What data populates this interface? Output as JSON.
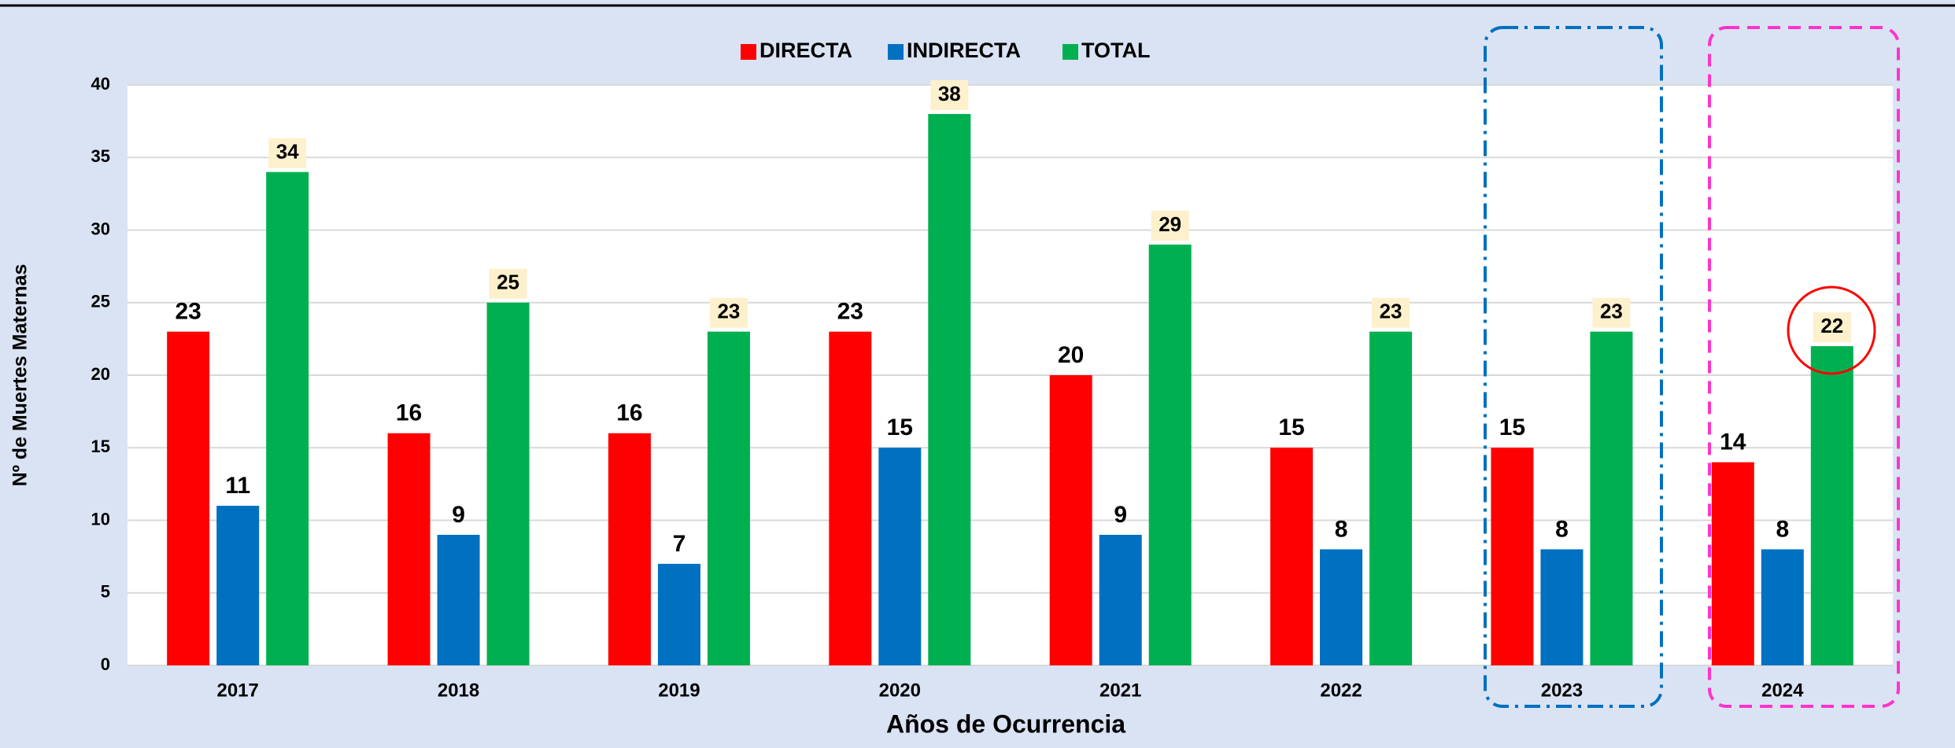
{
  "chart_data": {
    "type": "bar",
    "categories": [
      "2017",
      "2018",
      "2019",
      "2020",
      "2021",
      "2022",
      "2023",
      "2024"
    ],
    "series": [
      {
        "name": "DIRECTA",
        "color": "#ff0000",
        "values": [
          23,
          16,
          16,
          23,
          20,
          15,
          15,
          14
        ]
      },
      {
        "name": "INDIRECTA",
        "color": "#0070c0",
        "values": [
          11,
          9,
          7,
          15,
          9,
          8,
          8,
          8
        ]
      },
      {
        "name": "TOTAL",
        "color": "#00b050",
        "values": [
          34,
          25,
          23,
          38,
          29,
          23,
          23,
          22
        ]
      }
    ],
    "ylim": [
      0,
      40
    ],
    "yticks": [
      0,
      5,
      10,
      15,
      20,
      25,
      30,
      35,
      40
    ],
    "grid": true,
    "x_label": "Años de Ocurrencia",
    "y_label": "Nº de Muertes Maternas",
    "legend": "top"
  }
}
